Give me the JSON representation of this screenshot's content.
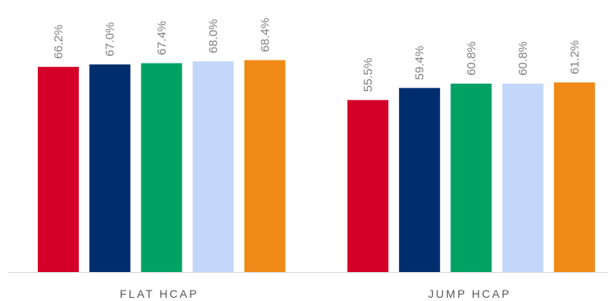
{
  "chart_data": {
    "type": "bar",
    "categories": [
      "FLAT HCAP",
      "JUMP HCAP"
    ],
    "series": [
      {
        "values": [
          66.2,
          55.5
        ],
        "color": "#d4002a"
      },
      {
        "values": [
          67.0,
          59.4
        ],
        "color": "#002d6e"
      },
      {
        "values": [
          67.4,
          60.8
        ],
        "color": "#00a264"
      },
      {
        "values": [
          68.0,
          60.8
        ],
        "color": "#c4d7fb"
      },
      {
        "values": [
          68.4,
          61.2
        ],
        "color": "#ef8a17"
      }
    ],
    "data_labels": [
      [
        "66.2%",
        "67.0%",
        "67.4%",
        "68.0%",
        "68.4%"
      ],
      [
        "55.5%",
        "59.4%",
        "60.8%",
        "60.8%",
        "61.2%"
      ]
    ],
    "ylim": [
      0,
      100
    ],
    "grid": false,
    "legend": "none"
  }
}
